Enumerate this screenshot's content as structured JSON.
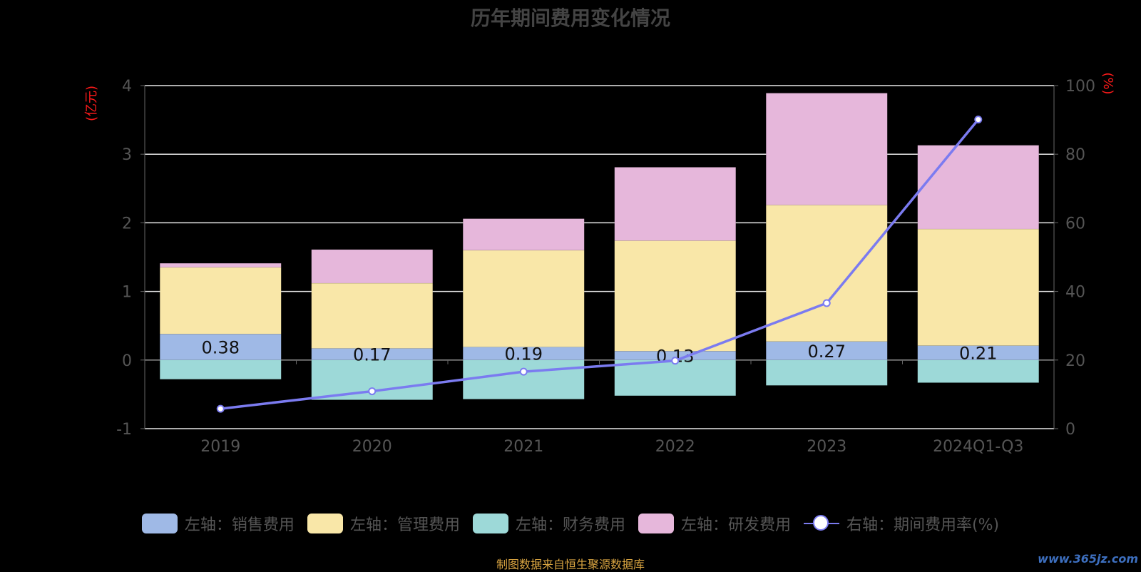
{
  "title": "历年期间费用变化情况",
  "source": "制图数据来自恒生聚源数据库",
  "watermark": "www.365jz.com",
  "colors": {
    "sales": "#9fb9e6",
    "admin": "#f9e7a8",
    "finance": "#9dd9d8",
    "rd": "#e6b7db",
    "rate": "#7b7bf0"
  },
  "legend": [
    {
      "label": "左轴：销售费用",
      "type": "box",
      "color_key": "sales"
    },
    {
      "label": "左轴：管理费用",
      "type": "box",
      "color_key": "admin"
    },
    {
      "label": "左轴：财务费用",
      "type": "box",
      "color_key": "finance"
    },
    {
      "label": "左轴：研发费用",
      "type": "box",
      "color_key": "rd"
    },
    {
      "label": "右轴：期间费用率(%)",
      "type": "line",
      "color_key": "rate"
    }
  ],
  "chart_data": {
    "type": "bar",
    "stacked": true,
    "categories": [
      "2019",
      "2020",
      "2021",
      "2022",
      "2023",
      "2024Q1-Q3"
    ],
    "y_left": {
      "label": "(亿元)",
      "range": [
        -1,
        4
      ],
      "ticks": [
        -1,
        0,
        1,
        2,
        3,
        4
      ]
    },
    "y_right": {
      "label": "(%)",
      "range": [
        0,
        100
      ],
      "ticks": [
        0,
        20,
        40,
        60,
        80,
        100
      ]
    },
    "grid": true,
    "legend_position": "bottom",
    "series": [
      {
        "name": "左轴：销售费用",
        "axis": "left",
        "values": [
          0.38,
          0.17,
          0.19,
          0.13,
          0.27,
          0.21
        ],
        "labels": [
          "0.38",
          "0.17",
          "0.19",
          "0.13",
          "0.27",
          "0.21"
        ]
      },
      {
        "name": "左轴：管理费用",
        "axis": "left",
        "values": [
          0.97,
          0.95,
          1.41,
          1.61,
          1.99,
          1.7
        ]
      },
      {
        "name": "左轴：财务费用",
        "axis": "left",
        "values": [
          -0.28,
          -0.58,
          -0.57,
          -0.52,
          -0.37,
          -0.33
        ]
      },
      {
        "name": "左轴：研发费用",
        "axis": "left",
        "values": [
          0.06,
          0.49,
          0.46,
          1.07,
          1.63,
          1.22
        ]
      },
      {
        "name": "右轴：期间费用率(%)",
        "axis": "right",
        "type": "line",
        "values": [
          5.8,
          10.9,
          16.6,
          19.8,
          36.6,
          90.1
        ]
      }
    ]
  }
}
